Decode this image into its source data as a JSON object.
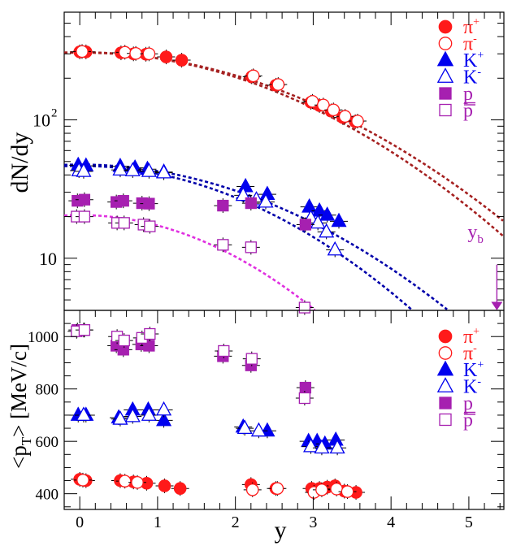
{
  "chart_data": [
    {
      "type": "scatter",
      "panel": "top",
      "ylabel": "dN/dy",
      "yscale": "log",
      "ylim": [
        4.2,
        600
      ],
      "xlim": [
        -0.2,
        5.45
      ],
      "y_tick_labels": [
        "10",
        "10",
        "2"
      ],
      "beam_rapidity_label": {
        "text": "y",
        "sub": "b",
        "x": 5.36
      },
      "series": [
        {
          "name": "π+",
          "label_main": "π",
          "label_sup": "+",
          "color": "#ff1a1a",
          "marker": "circle-filled",
          "x": [
            0.0,
            0.08,
            0.53,
            0.69,
            0.85,
            1.11,
            1.31,
            2.21,
            2.52,
            2.97,
            3.08,
            3.23,
            3.38,
            3.54
          ],
          "y": [
            310,
            310,
            305,
            300,
            298,
            285,
            270,
            205,
            178,
            134,
            127,
            116,
            104,
            97
          ]
        },
        {
          "name": "π-",
          "label_main": "π",
          "label_sup": "-",
          "color": "#ff1a1a",
          "marker": "circle-open",
          "x": [
            0.03,
            0.58,
            0.72,
            0.89,
            2.23,
            2.55,
            2.99,
            3.13,
            3.26,
            3.41,
            3.57
          ],
          "y": [
            312,
            308,
            302,
            300,
            208,
            180,
            136,
            128,
            118,
            106,
            98
          ]
        },
        {
          "name": "K+",
          "label_main": "K",
          "label_sup": "+",
          "color": "#0000ee",
          "marker": "triangle-filled",
          "x": [
            -0.02,
            0.08,
            0.52,
            0.71,
            0.87,
            1.08,
            2.13,
            2.41,
            2.95,
            3.08,
            3.18,
            3.33
          ],
          "y": [
            47,
            46.5,
            46.2,
            45,
            44,
            42,
            33,
            29,
            23.5,
            22,
            20.5,
            18.5
          ]
        },
        {
          "name": "K-",
          "label_main": "K",
          "label_sup": "-",
          "color": "#0000ee",
          "marker": "triangle-open",
          "x": [
            -0.01,
            0.05,
            0.52,
            0.68,
            0.89,
            1.08,
            2.1,
            2.27,
            2.39,
            2.97,
            3.06,
            3.17,
            3.28
          ],
          "y": [
            43,
            42.5,
            43.5,
            43,
            42.5,
            41.5,
            28.5,
            26.5,
            25.5,
            19.5,
            18,
            15.5,
            11.5
          ]
        },
        {
          "name": "p",
          "label_main": "p",
          "label_sup": "",
          "color": "#a620b0",
          "marker": "square-filled",
          "x": [
            -0.03,
            0.06,
            0.47,
            0.56,
            0.8,
            0.89,
            1.84,
            2.2,
            2.9
          ],
          "y": [
            26,
            26.5,
            25.5,
            26,
            25,
            24.8,
            24,
            25,
            17.5
          ]
        },
        {
          "name": "p̄",
          "label_main": "p",
          "label_sup": "",
          "color": "#a620b0",
          "marker": "square-open",
          "x": [
            -0.04,
            0.06,
            0.48,
            0.57,
            0.82,
            0.9,
            1.84,
            2.2,
            2.89
          ],
          "y": [
            20,
            20,
            18,
            18,
            17.5,
            17,
            12.5,
            12,
            4.4
          ]
        }
      ],
      "fit_curves": [
        {
          "color": "#a52020",
          "sigma": 2.2,
          "amp": 308
        },
        {
          "color": "#a52020",
          "sigma": 2.3,
          "amp": 306
        },
        {
          "color": "#0000aa",
          "sigma": 2.15,
          "amp": 47.5
        },
        {
          "color": "#0000aa",
          "sigma": 1.95,
          "amp": 46.5
        },
        {
          "color": "#e030e0",
          "sigma": 1.7,
          "amp": 20.5
        }
      ]
    },
    {
      "type": "scatter",
      "panel": "bottom",
      "xlabel": "y",
      "ylabel_main": "<p",
      "ylabel_sub": "T",
      "ylabel_rest": "> [MeV/c]",
      "ylim": [
        340,
        1100
      ],
      "xlim": [
        -0.2,
        5.45
      ],
      "y_ticks": [
        400,
        600,
        800,
        1000
      ],
      "x_ticks": [
        0,
        1,
        2,
        3,
        4,
        5
      ],
      "series": [
        {
          "name": "π+",
          "label_main": "π",
          "label_sup": "+",
          "color": "#ff1a1a",
          "marker": "circle-filled",
          "x": [
            0.0,
            0.08,
            0.52,
            0.69,
            0.86,
            1.09,
            1.29,
            2.2,
            2.52,
            2.98,
            3.08,
            3.18,
            3.28,
            3.4,
            3.55
          ],
          "y": [
            455,
            450,
            450,
            445,
            440,
            430,
            420,
            435,
            420,
            420,
            420,
            425,
            430,
            410,
            405
          ]
        },
        {
          "name": "π-",
          "label_main": "π",
          "label_sup": "-",
          "color": "#ff1a1a",
          "marker": "circle-open",
          "x": [
            0.04,
            0.58,
            0.74,
            2.22,
            2.54,
            3.01,
            3.11,
            3.3,
            3.44
          ],
          "y": [
            452,
            448,
            443,
            415,
            420,
            405,
            415,
            418,
            408
          ]
        },
        {
          "name": "K+",
          "label_main": "K",
          "label_sup": "+",
          "color": "#0000ee",
          "marker": "triangle-filled",
          "x": [
            -0.02,
            0.08,
            0.5,
            0.68,
            0.88,
            1.08,
            2.1,
            2.41,
            2.94,
            3.05,
            3.15,
            3.29
          ],
          "y": [
            700,
            700,
            690,
            720,
            720,
            680,
            655,
            640,
            600,
            600,
            590,
            605
          ]
        },
        {
          "name": "K-",
          "label_main": "K",
          "label_sup": "-",
          "color": "#0000ee",
          "marker": "triangle-open",
          "x": [
            0.05,
            0.52,
            0.68,
            0.89,
            1.08,
            2.12,
            2.3,
            2.97,
            3.11,
            3.31
          ],
          "y": [
            700,
            685,
            695,
            700,
            720,
            650,
            640,
            580,
            575,
            575
          ]
        },
        {
          "name": "p",
          "label_main": "p",
          "label_sup": "",
          "color": "#a620b0",
          "marker": "square-filled",
          "x": [
            -0.03,
            0.05,
            0.47,
            0.56,
            0.79,
            0.89,
            1.84,
            2.2,
            2.9
          ],
          "y": [
            1025,
            1025,
            965,
            950,
            970,
            965,
            925,
            890,
            805
          ]
        },
        {
          "name": "p̄",
          "label_main": "p",
          "label_sup": "",
          "color": "#a620b0",
          "marker": "square-open",
          "x": [
            -0.04,
            0.06,
            0.48,
            0.57,
            0.8,
            0.9,
            1.85,
            2.21,
            2.89
          ],
          "y": [
            1020,
            1025,
            1000,
            985,
            995,
            1010,
            945,
            915,
            765
          ]
        }
      ]
    }
  ]
}
